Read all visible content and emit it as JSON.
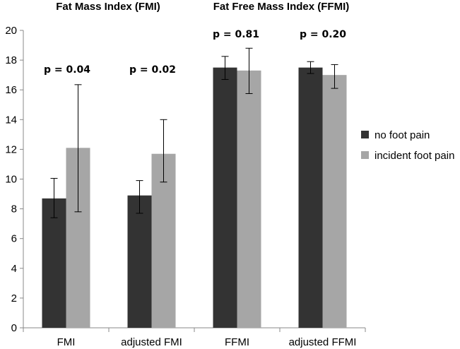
{
  "chart_data": {
    "type": "bar",
    "categories": [
      "FMI",
      "adjusted FMI",
      "FFMI",
      "adjusted FFMI"
    ],
    "series": [
      {
        "name": "no foot pain",
        "color": "#333333",
        "values": [
          8.7,
          8.9,
          17.5,
          17.5
        ],
        "err_low": [
          7.4,
          7.7,
          16.7,
          17.1
        ],
        "err_high": [
          10.05,
          9.9,
          18.25,
          17.9
        ]
      },
      {
        "name": "incident foot pain",
        "color": "#a6a6a6",
        "values": [
          12.1,
          11.7,
          17.3,
          17.0
        ],
        "err_low": [
          7.8,
          9.8,
          15.75,
          16.1
        ],
        "err_high": [
          16.35,
          14.0,
          18.8,
          17.7
        ]
      }
    ],
    "ylim": [
      0,
      20
    ],
    "yticks": [
      "0",
      "2",
      "4",
      "6",
      "8",
      "10",
      "12",
      "14",
      "16",
      "18",
      "20"
    ],
    "panel_titles": [
      "Fat Mass Index (FMI)",
      "Fat Free Mass Index (FFMI)"
    ],
    "p_values": [
      "p = 0.04",
      "p = 0.02",
      "p = 0.81",
      "p = 0.20"
    ],
    "legend": {
      "position": "right",
      "entries": [
        "no foot pain",
        "incident foot pain"
      ]
    },
    "grid": false
  }
}
